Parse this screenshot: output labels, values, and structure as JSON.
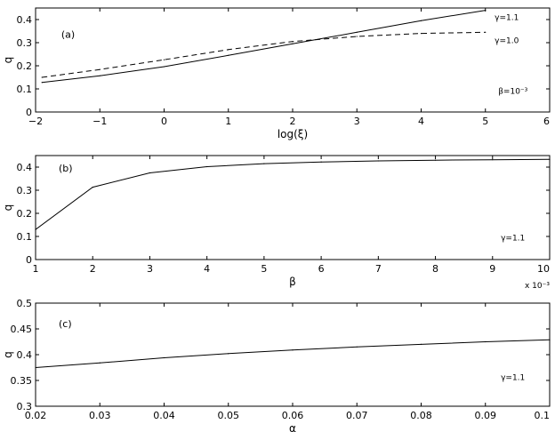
{
  "chart_data": [
    {
      "type": "line",
      "panel_label": "(a)",
      "xlabel": "log(ξ)",
      "ylabel": "q",
      "xlim": [
        -2,
        6
      ],
      "ylim": [
        0,
        0.45
      ],
      "xticks": [
        "−2",
        "−1",
        "0",
        "1",
        "2",
        "3",
        "4",
        "5",
        "6"
      ],
      "yticks": [
        "0",
        "0.1",
        "0.2",
        "0.3",
        "0.4"
      ],
      "annotation": "β=10⁻³",
      "series": [
        {
          "name": "γ=1.1",
          "style": "solid",
          "x": [
            -1.9,
            -1,
            0,
            1,
            2,
            3,
            4,
            5
          ],
          "y": [
            0.128,
            0.157,
            0.196,
            0.245,
            0.295,
            0.345,
            0.395,
            0.44
          ]
        },
        {
          "name": "γ=1.0",
          "style": "dashed",
          "x": [
            -1.9,
            -1,
            0,
            1,
            2,
            3,
            4,
            5
          ],
          "y": [
            0.15,
            0.184,
            0.226,
            0.27,
            0.305,
            0.327,
            0.34,
            0.345
          ]
        }
      ]
    },
    {
      "type": "line",
      "panel_label": "(b)",
      "xlabel": "β",
      "ylabel": "q",
      "xlim": [
        1,
        10
      ],
      "ylim": [
        0,
        0.45
      ],
      "xticks": [
        "1",
        "2",
        "3",
        "4",
        "5",
        "6",
        "7",
        "8",
        "9",
        "10"
      ],
      "yticks": [
        "0",
        "0.1",
        "0.2",
        "0.3",
        "0.4"
      ],
      "x_exponent": "x 10⁻³",
      "annotation": "γ=1.1",
      "series": [
        {
          "style": "solid",
          "x": [
            1,
            2,
            3,
            4,
            5,
            6,
            7,
            8,
            9,
            10
          ],
          "y": [
            0.13,
            0.313,
            0.375,
            0.402,
            0.415,
            0.422,
            0.427,
            0.43,
            0.432,
            0.434
          ]
        }
      ]
    },
    {
      "type": "line",
      "panel_label": "(c)",
      "xlabel": "α",
      "ylabel": "q",
      "xlim": [
        0.02,
        0.1
      ],
      "ylim": [
        0.3,
        0.5
      ],
      "xticks": [
        "0.02",
        "0.03",
        "0.04",
        "0.05",
        "0.06",
        "0.07",
        "0.08",
        "0.09",
        "0.1"
      ],
      "yticks": [
        "0.3",
        "0.35",
        "0.4",
        "0.45",
        "0.5"
      ],
      "annotation": "γ=1.1",
      "series": [
        {
          "style": "solid",
          "x": [
            0.02,
            0.03,
            0.04,
            0.05,
            0.06,
            0.07,
            0.08,
            0.09,
            0.1
          ],
          "y": [
            0.375,
            0.384,
            0.394,
            0.402,
            0.409,
            0.415,
            0.42,
            0.425,
            0.429
          ]
        }
      ]
    }
  ]
}
